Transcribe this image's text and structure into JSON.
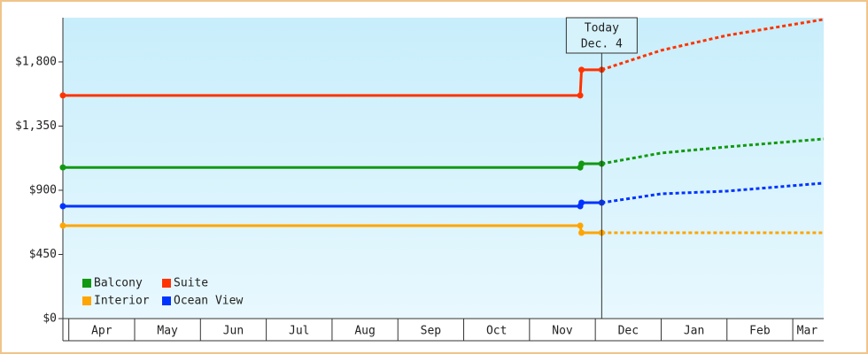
{
  "chart_data": {
    "type": "line",
    "x": [
      -0.09,
      7.77,
      7.79,
      8.097,
      9,
      10,
      11.47
    ],
    "series": [
      {
        "name": "Balcony",
        "color": "#119911",
        "values": [
          1060,
          1060,
          1086,
          1086,
          1161,
          1204,
          1260
        ]
      },
      {
        "name": "Suite",
        "color": "#ff3300",
        "values": [
          1565,
          1565,
          1745,
          1745,
          1881,
          1986,
          2098
        ]
      },
      {
        "name": "Interior",
        "color": "#ffa500",
        "values": [
          652,
          652,
          602,
          602,
          602,
          602,
          602
        ]
      },
      {
        "name": "Ocean View",
        "color": "#0033ff",
        "values": [
          788,
          788,
          813,
          813,
          875,
          894,
          950
        ]
      }
    ],
    "xlim": [
      -0.09,
      11.47
    ],
    "xticks": [
      {
        "value": 0.5,
        "label": "Apr"
      },
      {
        "value": 1.5,
        "label": "May"
      },
      {
        "value": 2.5,
        "label": "Jun"
      },
      {
        "value": 3.5,
        "label": "Jul"
      },
      {
        "value": 4.5,
        "label": "Aug"
      },
      {
        "value": 5.5,
        "label": "Sep"
      },
      {
        "value": 6.5,
        "label": "Oct"
      },
      {
        "value": 7.5,
        "label": "Nov"
      },
      {
        "value": 8.5,
        "label": "Dec"
      },
      {
        "value": 9.5,
        "label": "Jan"
      },
      {
        "value": 10.5,
        "label": "Feb"
      },
      {
        "value": 11.22,
        "label": "Mar"
      }
    ],
    "ylim": [
      0,
      2110
    ],
    "yticks": [
      {
        "value": 0,
        "label": "$0"
      },
      {
        "value": 450,
        "label": "$450"
      },
      {
        "value": 900,
        "label": "$900"
      },
      {
        "value": 1350,
        "label": "$1,350"
      },
      {
        "value": 1800,
        "label": "$1,800"
      }
    ],
    "today": {
      "x": 8.097,
      "label": "Today",
      "date": "Dec. 4"
    },
    "legend": "bottom-left"
  }
}
